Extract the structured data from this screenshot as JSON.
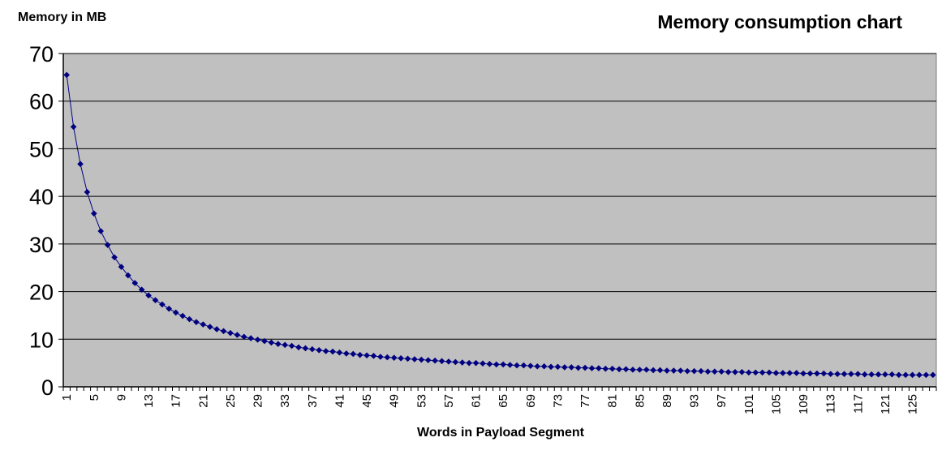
{
  "chart_data": {
    "type": "line",
    "title": "Memory consumption chart",
    "ylabel": "Memory in MB",
    "xlabel": "Words in Payload Segment",
    "ylim": [
      0,
      70
    ],
    "yticks": [
      0,
      10,
      20,
      30,
      40,
      50,
      60,
      70
    ],
    "xlim": [
      1,
      128
    ],
    "xtick_labels": [
      "1",
      "5",
      "9",
      "13",
      "17",
      "21",
      "25",
      "29",
      "33",
      "37",
      "41",
      "45",
      "49",
      "53",
      "57",
      "61",
      "65",
      "69",
      "73",
      "77",
      "81",
      "85",
      "89",
      "93",
      "97",
      "101",
      "105",
      "109",
      "113",
      "117",
      "121",
      "125"
    ],
    "grid": true,
    "legend": "none",
    "plot_background": "#c0c0c0",
    "series_color": "#000080",
    "series": [
      {
        "x": [
          1,
          2,
          3,
          4,
          5,
          6,
          7,
          8,
          9,
          10,
          11,
          12,
          13,
          14,
          15,
          16,
          17,
          18,
          19,
          20,
          21,
          22,
          23,
          24,
          25,
          26,
          27,
          28,
          29,
          30,
          31,
          32,
          33,
          34,
          35,
          36,
          37,
          38,
          39,
          40,
          41,
          42,
          43,
          44,
          45,
          46,
          47,
          48,
          49,
          50,
          51,
          52,
          53,
          54,
          55,
          56,
          57,
          58,
          59,
          60,
          61,
          62,
          63,
          64,
          65,
          66,
          67,
          68,
          69,
          70,
          71,
          72,
          73,
          74,
          75,
          76,
          77,
          78,
          79,
          80,
          81,
          82,
          83,
          84,
          85,
          86,
          87,
          88,
          89,
          90,
          91,
          92,
          93,
          94,
          95,
          96,
          97,
          98,
          99,
          100,
          101,
          102,
          103,
          104,
          105,
          106,
          107,
          108,
          109,
          110,
          111,
          112,
          113,
          114,
          115,
          116,
          117,
          118,
          119,
          120,
          121,
          122,
          123,
          124,
          125,
          126,
          127,
          128
        ],
        "values": [
          65.5,
          54.6,
          46.8,
          40.9,
          36.4,
          32.7,
          29.8,
          27.2,
          25.2,
          23.4,
          21.8,
          20.4,
          19.2,
          18.2,
          17.3,
          16.4,
          15.6,
          14.9,
          14.2,
          13.6,
          13.1,
          12.6,
          12.1,
          11.7,
          11.3,
          10.9,
          10.5,
          10.2,
          9.9,
          9.6,
          9.3,
          9.0,
          8.8,
          8.6,
          8.3,
          8.1,
          7.9,
          7.7,
          7.5,
          7.4,
          7.2,
          7.0,
          6.9,
          6.7,
          6.6,
          6.5,
          6.3,
          6.2,
          6.1,
          6.0,
          5.9,
          5.8,
          5.7,
          5.6,
          5.5,
          5.4,
          5.3,
          5.2,
          5.1,
          5.0,
          5.0,
          4.9,
          4.8,
          4.7,
          4.7,
          4.6,
          4.5,
          4.5,
          4.4,
          4.3,
          4.3,
          4.2,
          4.2,
          4.1,
          4.1,
          4.0,
          4.0,
          3.9,
          3.9,
          3.8,
          3.8,
          3.7,
          3.7,
          3.6,
          3.6,
          3.6,
          3.5,
          3.5,
          3.4,
          3.4,
          3.4,
          3.3,
          3.3,
          3.3,
          3.2,
          3.2,
          3.2,
          3.1,
          3.1,
          3.1,
          3.0,
          3.0,
          3.0,
          3.0,
          2.9,
          2.9,
          2.9,
          2.9,
          2.8,
          2.8,
          2.8,
          2.8,
          2.7,
          2.7,
          2.7,
          2.7,
          2.7,
          2.6,
          2.6,
          2.6,
          2.6,
          2.6,
          2.5,
          2.5,
          2.5,
          2.5,
          2.5,
          2.5
        ]
      }
    ]
  }
}
